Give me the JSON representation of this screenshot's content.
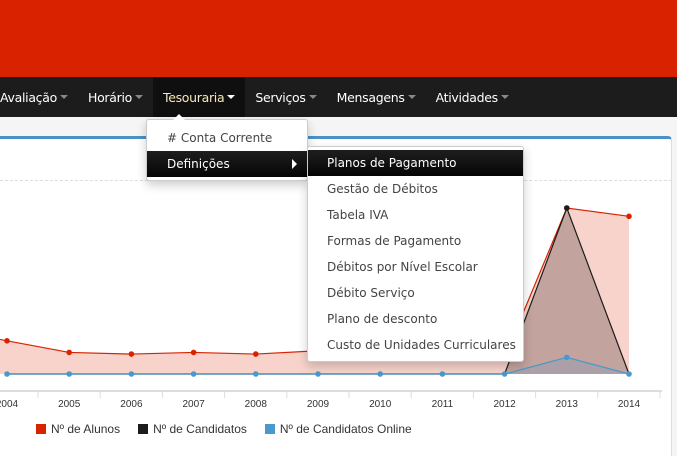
{
  "navbar": {
    "items": [
      {
        "label": "Avaliação",
        "active": false
      },
      {
        "label": "Horário",
        "active": false
      },
      {
        "label": "Tesouraria",
        "active": true
      },
      {
        "label": "Serviços",
        "active": false
      },
      {
        "label": "Mensagens",
        "active": false
      },
      {
        "label": "Atividades",
        "active": false
      }
    ]
  },
  "dropdown": {
    "items": [
      {
        "label": "# Conta Corrente"
      },
      {
        "label": "Definições",
        "has_submenu": true,
        "highlighted": true
      }
    ]
  },
  "submenu": {
    "items": [
      {
        "label": "Planos de Pagamento",
        "highlighted": true
      },
      {
        "label": "Gestão de Débitos"
      },
      {
        "label": "Tabela IVA"
      },
      {
        "label": "Formas de Pagamento"
      },
      {
        "label": "Débitos por Nível Escolar"
      },
      {
        "label": "Débito Serviço"
      },
      {
        "label": "Plano de desconto"
      },
      {
        "label": "Custo de Unidades Curriculares"
      }
    ]
  },
  "colors": {
    "header": "#d82200",
    "navbar": "#1c1c1c",
    "panel_border": "#4a92c6"
  },
  "chart_data": {
    "type": "area",
    "categories": [
      "2004",
      "2005",
      "2006",
      "2007",
      "2008",
      "2009",
      "2010",
      "2011",
      "2012",
      "2013",
      "2014"
    ],
    "series": [
      {
        "name": "Nº de Alunos",
        "color": "#d82200",
        "values": [
          20,
          13,
          12,
          13,
          12,
          14,
          15,
          16,
          10,
          100,
          95
        ]
      },
      {
        "name": "Nº de Candidatos",
        "color": "#1c1c1c",
        "values": [
          0,
          0,
          0,
          0,
          0,
          0,
          0,
          0,
          0,
          100,
          0
        ]
      },
      {
        "name": "Nº de Candidatos Online",
        "color": "#4a98cc",
        "values": [
          0,
          0,
          0,
          0,
          0,
          0,
          0,
          0,
          0,
          10,
          0
        ]
      }
    ],
    "ylim": [
      0,
      100
    ],
    "grid": false,
    "legend": "bottom"
  }
}
